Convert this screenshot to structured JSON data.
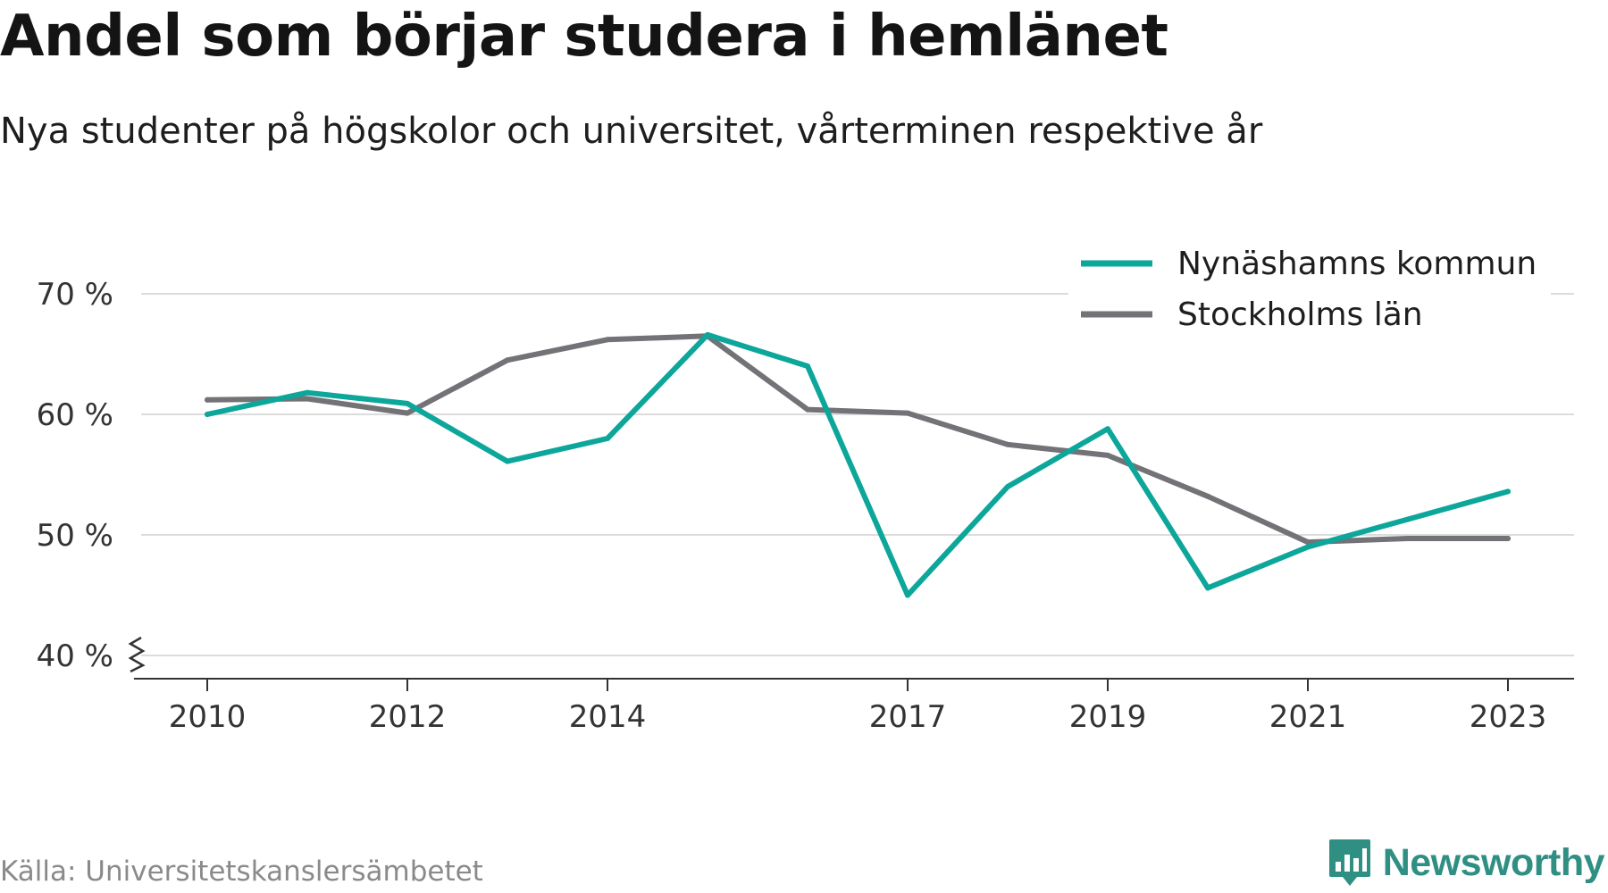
{
  "title": "Andel som börjar studera i hemlänet",
  "subtitle": "Nya studenter på högskolor och universitet, vårterminen respektive år",
  "source": "Källa: Universitetskanslersämbetet",
  "brand": {
    "name": "Newsworthy",
    "icon": "newsworthy-logo-icon",
    "color": "#2f8f83"
  },
  "chart_data": {
    "type": "line",
    "title": "Andel som börjar studera i hemlänet",
    "subtitle": "Nya studenter på högskolor och universitet, vårterminen respektive år",
    "x": [
      2010,
      2011,
      2012,
      2013,
      2014,
      2015,
      2016,
      2017,
      2018,
      2019,
      2020,
      2021,
      2022,
      2023
    ],
    "x_tick_labels": [
      "2010",
      "2012",
      "2014",
      "2017",
      "2019",
      "2021",
      "2023"
    ],
    "y_ticks": [
      40,
      50,
      60,
      70
    ],
    "y_tick_labels": [
      "40 %",
      "50 %",
      "60 %",
      "70 %"
    ],
    "ylim": [
      40,
      70
    ],
    "y_axis_break": true,
    "grid": true,
    "legend_position": "top-right",
    "series": [
      {
        "name": "Nynäshamns kommun",
        "color": "#0da69a",
        "values": [
          60.0,
          61.8,
          60.9,
          56.1,
          58.0,
          66.6,
          64.0,
          45.0,
          54.0,
          58.8,
          45.6,
          49.0,
          51.3,
          53.6
        ]
      },
      {
        "name": "Stockholms län",
        "color": "#737277",
        "values": [
          61.2,
          61.3,
          60.1,
          64.5,
          66.2,
          66.5,
          60.4,
          60.1,
          57.5,
          56.6,
          53.2,
          49.4,
          49.7,
          49.7
        ]
      }
    ]
  }
}
